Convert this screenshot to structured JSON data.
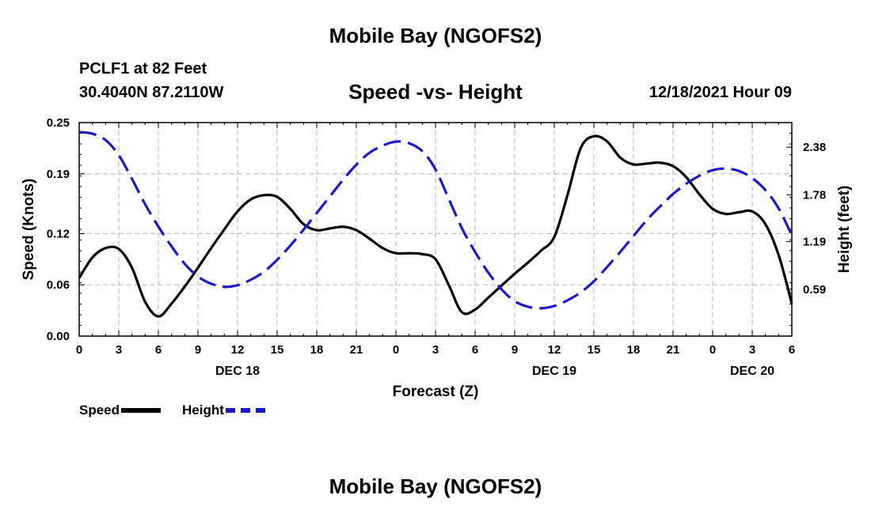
{
  "page": {
    "title": "Mobile Bay (NGOFS2)",
    "title_repeat": "Mobile Bay (NGOFS2)",
    "station": "PCLF1 at 82 Feet",
    "coordinates": "30.4040N  87.2110W",
    "timestamp": "12/18/2021 Hour 09"
  },
  "legend": {
    "speed_label": "Speed",
    "height_label": "Height"
  },
  "colors": {
    "speed": "#000000",
    "height": "#1a1ac8",
    "grid": "#bdbdbd"
  },
  "chart_data": {
    "type": "line",
    "title": "Speed -vs- Height",
    "xlabel": "Forecast (Z)",
    "ylabel": "Speed (Knots)",
    "y2label": "Height (feet)",
    "x_range_hours": [
      0,
      54
    ],
    "x_tick_labels": [
      "0",
      "3",
      "6",
      "9",
      "12",
      "15",
      "18",
      "21",
      "0",
      "3",
      "6",
      "9",
      "12",
      "15",
      "18",
      "21",
      "0",
      "3",
      "6"
    ],
    "date_labels": [
      {
        "label": "DEC 18",
        "hour": 12
      },
      {
        "label": "DEC 19",
        "hour": 36
      },
      {
        "label": "DEC 20",
        "hour": 51
      }
    ],
    "ylim": [
      0,
      0.25
    ],
    "yticks": [
      "0.00",
      "0.06",
      "0.12",
      "0.19",
      "0.25"
    ],
    "y2lim": [
      0,
      2.69
    ],
    "y2ticks": [
      "0.59",
      "1.19",
      "1.78",
      "2.38"
    ],
    "grid": true,
    "legend_position": "bottom-left",
    "series": [
      {
        "name": "Speed",
        "axis": "left",
        "style": "solid",
        "x": [
          0,
          1,
          2,
          3,
          4,
          5,
          6,
          7,
          8,
          9,
          10,
          11,
          12,
          13,
          14,
          15,
          16,
          17,
          18,
          19,
          20,
          21,
          22,
          23,
          24,
          25,
          26,
          27,
          28,
          29,
          30,
          31,
          32,
          33,
          34,
          35,
          36,
          37,
          38,
          39,
          40,
          41,
          42,
          43,
          44,
          45,
          46,
          47,
          48,
          49,
          50,
          51,
          52,
          53,
          54
        ],
        "y": [
          0.068,
          0.092,
          0.103,
          0.102,
          0.08,
          0.04,
          0.023,
          0.038,
          0.058,
          0.08,
          0.103,
          0.125,
          0.146,
          0.16,
          0.165,
          0.163,
          0.149,
          0.131,
          0.124,
          0.126,
          0.128,
          0.124,
          0.114,
          0.103,
          0.097,
          0.097,
          0.096,
          0.09,
          0.06,
          0.028,
          0.031,
          0.045,
          0.059,
          0.073,
          0.086,
          0.1,
          0.116,
          0.165,
          0.22,
          0.234,
          0.228,
          0.209,
          0.201,
          0.202,
          0.203,
          0.199,
          0.186,
          0.166,
          0.149,
          0.143,
          0.145,
          0.146,
          0.131,
          0.095,
          0.038
        ]
      },
      {
        "name": "Height",
        "axis": "right",
        "style": "dashed",
        "x": [
          0,
          1,
          2,
          3,
          4,
          5,
          6,
          7,
          8,
          9,
          10,
          11,
          12,
          13,
          14,
          15,
          16,
          17,
          18,
          19,
          20,
          21,
          22,
          23,
          24,
          25,
          26,
          27,
          28,
          29,
          30,
          31,
          32,
          33,
          34,
          35,
          36,
          37,
          38,
          39,
          40,
          41,
          42,
          43,
          44,
          45,
          46,
          47,
          48,
          49,
          50,
          51,
          52,
          53,
          54
        ],
        "y": [
          2.57,
          2.55,
          2.47,
          2.28,
          1.98,
          1.66,
          1.38,
          1.13,
          0.91,
          0.75,
          0.66,
          0.62,
          0.64,
          0.71,
          0.81,
          0.96,
          1.14,
          1.34,
          1.55,
          1.76,
          1.97,
          2.16,
          2.31,
          2.4,
          2.45,
          2.43,
          2.33,
          2.1,
          1.73,
          1.36,
          1.06,
          0.8,
          0.59,
          0.44,
          0.37,
          0.35,
          0.38,
          0.45,
          0.55,
          0.69,
          0.87,
          1.06,
          1.26,
          1.46,
          1.63,
          1.79,
          1.92,
          2.02,
          2.09,
          2.11,
          2.08,
          1.99,
          1.84,
          1.61,
          1.27
        ]
      }
    ]
  }
}
